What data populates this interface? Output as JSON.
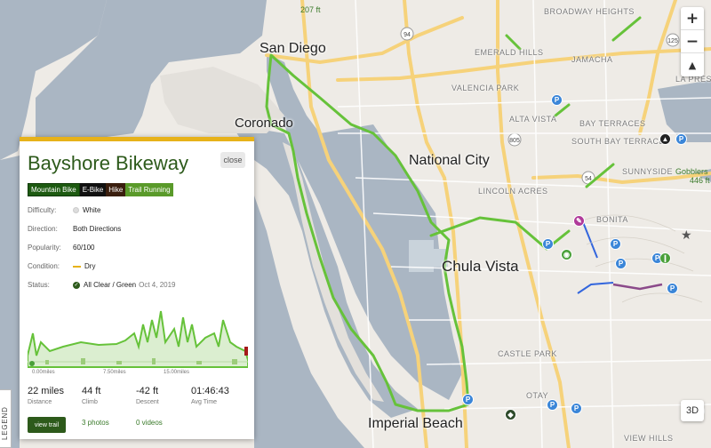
{
  "map": {
    "places": {
      "san_diego": "San Diego",
      "coronado": "Coronado",
      "national_city": "National City",
      "chula_vista": "Chula Vista",
      "imperial_beach": "Imperial Beach",
      "broadway_heights": "BROADWAY HEIGHTS",
      "emerald_hills": "EMERALD HILLS",
      "jamacha": "JAMACHA",
      "la_presa": "LA PRESA",
      "valencia_park": "VALENCIA PARK",
      "alta_vista": "ALTA VISTA",
      "bay_terraces": "BAY TERRACES",
      "south_bay_terraces": "SOUTH BAY TERRACES",
      "sunnyside": "SUNNYSIDE",
      "lincoln_acres": "LINCOLN ACRES",
      "bonita": "BONITA",
      "castle_park": "CASTLE PARK",
      "otay": "OTAY",
      "ocean_view_hills": "VIEW HILLS",
      "gobblers": "Gobblers",
      "gobblers_ft": "446 ft",
      "top_peak": "207 ft"
    },
    "highway_shields": [
      "94",
      "125",
      "54",
      "805"
    ],
    "colors": {
      "water": "#aab6c3",
      "land": "#eeebe6",
      "trail": "#66c23a",
      "road": "#f6d27a"
    }
  },
  "controls": {
    "zoom_in": "+",
    "zoom_out": "−",
    "compass": "▲",
    "three_d": "3D",
    "legend": "LEGEND"
  },
  "card": {
    "title": "Bayshore Bikeway",
    "close": "close",
    "tags": [
      "Mountain Bike",
      "E-Bike",
      "Hike",
      "Trail Running"
    ],
    "difficulty_label": "Difficulty:",
    "difficulty_value": "White",
    "direction_label": "Direction:",
    "direction_value": "Both Directions",
    "popularity_label": "Popularity:",
    "popularity_value": "60/100",
    "condition_label": "Condition:",
    "condition_value": "Dry",
    "status_label": "Status:",
    "status_value": "All Clear / Green",
    "status_date": "Oct 4, 2019",
    "elevation_axis": [
      "0.00miles",
      "7.50miles",
      "15.00miles"
    ],
    "stats": [
      {
        "value": "22 miles",
        "caption": "Distance"
      },
      {
        "value": "44 ft",
        "caption": "Climb"
      },
      {
        "value": "-42 ft",
        "caption": "Descent"
      },
      {
        "value": "01:46:43",
        "caption": "Avg Time"
      }
    ],
    "view_button": "view trail",
    "photos": "3 photos",
    "videos": "0 videos"
  }
}
